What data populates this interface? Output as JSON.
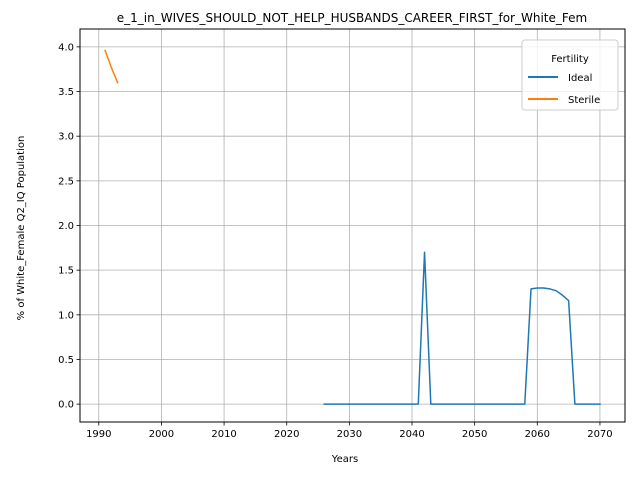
{
  "chart_data": {
    "type": "line",
    "title": "e_1_in_WIVES_SHOULD_NOT_HELP_HUSBANDS_CAREER_FIRST_for_White_Fem",
    "xlabel": "Years",
    "ylabel": "% of White_Female Q2_IQ Population",
    "xlim": [
      1987,
      2074
    ],
    "ylim": [
      -0.2,
      4.2
    ],
    "xticks": [
      1990,
      2000,
      2010,
      2020,
      2030,
      2040,
      2050,
      2060,
      2070
    ],
    "yticks": [
      0.0,
      0.5,
      1.0,
      1.5,
      2.0,
      2.5,
      3.0,
      3.5,
      4.0
    ],
    "xtick_labels": [
      "1990",
      "2000",
      "2010",
      "2020",
      "2030",
      "2040",
      "2050",
      "2060",
      "2070"
    ],
    "ytick_labels": [
      "0.0",
      "0.5",
      "1.0",
      "1.5",
      "2.0",
      "2.5",
      "3.0",
      "3.5",
      "4.0"
    ],
    "grid": true,
    "legend": {
      "title": "Fertility",
      "placement": "top-right"
    },
    "series": [
      {
        "name": "Ideal",
        "color": "#1f77b4",
        "x": [
          2026,
          2027,
          2028,
          2029,
          2030,
          2031,
          2032,
          2033,
          2034,
          2035,
          2036,
          2037,
          2038,
          2039,
          2040,
          2041,
          2042,
          2043,
          2044,
          2045,
          2046,
          2047,
          2048,
          2049,
          2050,
          2051,
          2052,
          2053,
          2054,
          2055,
          2056,
          2057,
          2058,
          2059,
          2060,
          2061,
          2062,
          2063,
          2064,
          2065,
          2066,
          2067,
          2068,
          2069,
          2070
        ],
        "y": [
          0,
          0,
          0,
          0,
          0,
          0,
          0,
          0,
          0,
          0,
          0,
          0,
          0,
          0,
          0,
          0,
          1.7,
          0,
          0,
          0,
          0,
          0,
          0,
          0,
          0,
          0,
          0,
          0,
          0,
          0,
          0,
          0,
          0,
          1.29,
          1.3,
          1.3,
          1.29,
          1.27,
          1.22,
          1.16,
          0,
          0,
          0,
          0,
          0
        ]
      },
      {
        "name": "Sterile",
        "color": "#ff7f0e",
        "x": [
          1991,
          1992,
          1993
        ],
        "y": [
          3.96,
          3.77,
          3.6
        ]
      }
    ]
  }
}
